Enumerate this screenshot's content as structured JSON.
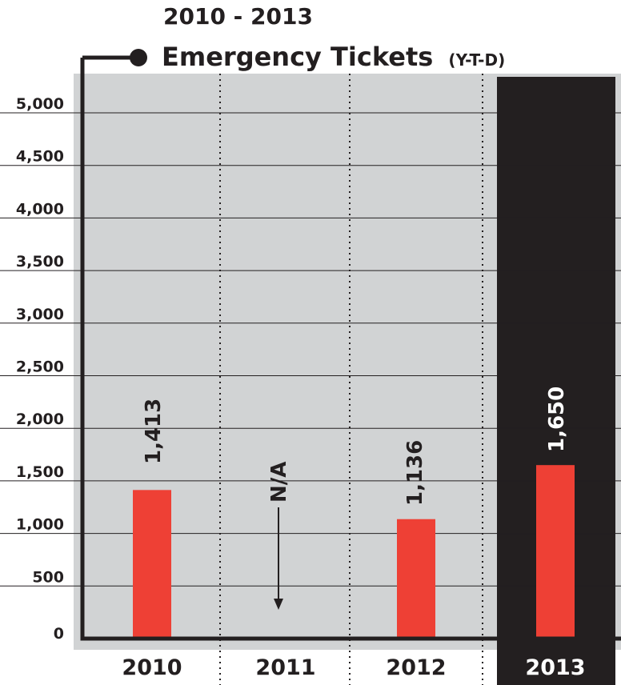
{
  "chart_data": {
    "type": "bar",
    "title_line1": "2010 - 2013",
    "title_line2": "Emergency Tickets",
    "title_suffix": "(Y-T-D)",
    "categories": [
      "2010",
      "2011",
      "2012",
      "2013"
    ],
    "values": [
      1413,
      null,
      1136,
      1650
    ],
    "value_labels": [
      "1,413",
      "N/A",
      "1,136",
      "1,650"
    ],
    "highlight_index": 3,
    "ylim": [
      0,
      5000
    ],
    "yticks": [
      0,
      500,
      1000,
      1500,
      2000,
      2500,
      3000,
      3500,
      4000,
      4500,
      5000
    ],
    "ytick_labels": [
      "0",
      "500",
      "1,000",
      "1,500",
      "2,000",
      "2,500",
      "3,000",
      "3,500",
      "4,000",
      "4,500",
      "5,000"
    ],
    "grid": true,
    "colors": {
      "bar": "#ee4035",
      "background": "#d1d3d4",
      "highlight": "#231f20",
      "axis": "#231f20"
    }
  }
}
